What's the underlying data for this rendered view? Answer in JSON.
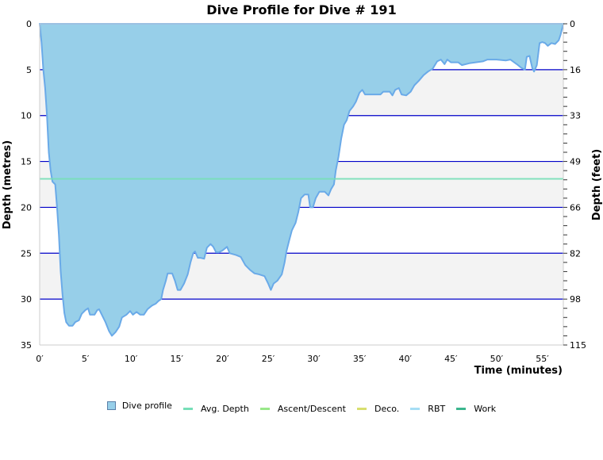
{
  "chart_data": {
    "type": "area",
    "title": "Dive Profile for Dive # 191",
    "xlabel": "Time (minutes)",
    "ylabel": "Depth (metres)",
    "y2label": "Depth (feet)",
    "xlim": [
      0,
      57.3
    ],
    "ylim": [
      0,
      35
    ],
    "y_inverted": true,
    "x_ticks": [
      "0′",
      "5′",
      "10′",
      "15′",
      "20′",
      "25′",
      "30′",
      "35′",
      "40′",
      "45′",
      "50′",
      "55′"
    ],
    "y_ticks": [
      0,
      5,
      10,
      15,
      20,
      25,
      30,
      35
    ],
    "y2_ticks": [
      0,
      16,
      33,
      49,
      66,
      82,
      98,
      115
    ],
    "grid": true,
    "bands": "alternating white/light-gray every 5 m",
    "avg_depth_m": 16.9,
    "series": [
      {
        "name": "Dive profile",
        "color": "#97cfe9",
        "stroke": "#6aaae8",
        "points": [
          [
            0,
            0
          ],
          [
            0.2,
            2
          ],
          [
            0.4,
            5
          ],
          [
            0.6,
            7
          ],
          [
            0.8,
            10
          ],
          [
            1.0,
            14
          ],
          [
            1.2,
            16
          ],
          [
            1.4,
            17.2
          ],
          [
            1.7,
            17.5
          ],
          [
            1.9,
            20
          ],
          [
            2.1,
            23
          ],
          [
            2.3,
            27
          ],
          [
            2.5,
            29.5
          ],
          [
            2.7,
            31.5
          ],
          [
            2.9,
            32.5
          ],
          [
            3.2,
            32.9
          ],
          [
            3.6,
            32.9
          ],
          [
            3.9,
            32.5
          ],
          [
            4.3,
            32.3
          ],
          [
            4.6,
            31.6
          ],
          [
            5.0,
            31.2
          ],
          [
            5.3,
            31.0
          ],
          [
            5.5,
            31.7
          ],
          [
            6.0,
            31.7
          ],
          [
            6.3,
            31.2
          ],
          [
            6.5,
            31.1
          ],
          [
            6.8,
            31.7
          ],
          [
            7.2,
            32.5
          ],
          [
            7.6,
            33.5
          ],
          [
            7.9,
            34.0
          ],
          [
            8.3,
            33.6
          ],
          [
            8.7,
            33.0
          ],
          [
            9.0,
            32.0
          ],
          [
            9.5,
            31.7
          ],
          [
            9.9,
            31.3
          ],
          [
            10.2,
            31.7
          ],
          [
            10.6,
            31.4
          ],
          [
            11.0,
            31.7
          ],
          [
            11.4,
            31.7
          ],
          [
            11.8,
            31.1
          ],
          [
            12.3,
            30.7
          ],
          [
            12.7,
            30.5
          ],
          [
            13.0,
            30.2
          ],
          [
            13.3,
            30.0
          ],
          [
            13.5,
            29.0
          ],
          [
            13.8,
            28.0
          ],
          [
            14.0,
            27.2
          ],
          [
            14.5,
            27.2
          ],
          [
            14.8,
            28.0
          ],
          [
            15.1,
            29.0
          ],
          [
            15.4,
            29.0
          ],
          [
            15.8,
            28.3
          ],
          [
            16.2,
            27.3
          ],
          [
            16.5,
            26.0
          ],
          [
            16.8,
            25.0
          ],
          [
            17.0,
            24.8
          ],
          [
            17.3,
            25.5
          ],
          [
            17.6,
            25.5
          ],
          [
            18.0,
            25.6
          ],
          [
            18.3,
            24.4
          ],
          [
            18.7,
            24.0
          ],
          [
            19.0,
            24.3
          ],
          [
            19.3,
            24.9
          ],
          [
            19.6,
            24.9
          ],
          [
            20.0,
            24.7
          ],
          [
            20.5,
            24.3
          ],
          [
            20.8,
            25.0
          ],
          [
            21.5,
            25.2
          ],
          [
            22.0,
            25.4
          ],
          [
            22.5,
            26.3
          ],
          [
            23.0,
            26.8
          ],
          [
            23.5,
            27.2
          ],
          [
            24.0,
            27.3
          ],
          [
            24.6,
            27.5
          ],
          [
            25.0,
            28.3
          ],
          [
            25.3,
            29.0
          ],
          [
            25.6,
            28.3
          ],
          [
            26.0,
            28.0
          ],
          [
            26.5,
            27.3
          ],
          [
            26.8,
            26.0
          ],
          [
            27.0,
            24.8
          ],
          [
            27.3,
            23.6
          ],
          [
            27.6,
            22.5
          ],
          [
            28.0,
            21.7
          ],
          [
            28.3,
            20.5
          ],
          [
            28.6,
            19.0
          ],
          [
            29.0,
            18.6
          ],
          [
            29.4,
            18.6
          ],
          [
            29.6,
            20.0
          ],
          [
            29.9,
            20.0
          ],
          [
            30.2,
            19.0
          ],
          [
            30.6,
            18.3
          ],
          [
            31.2,
            18.3
          ],
          [
            31.6,
            18.7
          ],
          [
            31.9,
            18.0
          ],
          [
            32.2,
            17.5
          ],
          [
            32.4,
            16.0
          ],
          [
            32.7,
            14.5
          ],
          [
            33.0,
            12.5
          ],
          [
            33.3,
            11.0
          ],
          [
            33.6,
            10.5
          ],
          [
            33.9,
            9.5
          ],
          [
            34.3,
            9.0
          ],
          [
            34.6,
            8.5
          ],
          [
            35.0,
            7.5
          ],
          [
            35.3,
            7.2
          ],
          [
            35.6,
            7.7
          ],
          [
            37.3,
            7.7
          ],
          [
            37.6,
            7.4
          ],
          [
            38.3,
            7.4
          ],
          [
            38.6,
            7.8
          ],
          [
            38.9,
            7.2
          ],
          [
            39.3,
            7.0
          ],
          [
            39.6,
            7.7
          ],
          [
            40.1,
            7.8
          ],
          [
            40.6,
            7.4
          ],
          [
            41.0,
            6.7
          ],
          [
            41.5,
            6.2
          ],
          [
            42.0,
            5.6
          ],
          [
            42.5,
            5.2
          ],
          [
            43.0,
            4.9
          ],
          [
            43.5,
            4.1
          ],
          [
            43.9,
            3.9
          ],
          [
            44.3,
            4.4
          ],
          [
            44.6,
            3.9
          ],
          [
            45.0,
            4.2
          ],
          [
            45.8,
            4.2
          ],
          [
            46.2,
            4.5
          ],
          [
            47.0,
            4.3
          ],
          [
            48.5,
            4.1
          ],
          [
            49.0,
            3.9
          ],
          [
            50.0,
            3.9
          ],
          [
            51.0,
            4.0
          ],
          [
            51.5,
            3.9
          ],
          [
            52.2,
            4.4
          ],
          [
            52.7,
            4.8
          ],
          [
            53.1,
            5.0
          ],
          [
            53.3,
            3.6
          ],
          [
            53.6,
            3.5
          ],
          [
            53.9,
            4.8
          ],
          [
            54.1,
            5.2
          ],
          [
            54.4,
            4.5
          ],
          [
            54.7,
            2.1
          ],
          [
            55.0,
            2.0
          ],
          [
            55.3,
            2.1
          ],
          [
            55.6,
            2.4
          ],
          [
            56.0,
            2.1
          ],
          [
            56.4,
            2.2
          ],
          [
            56.8,
            1.8
          ],
          [
            57.0,
            1.2
          ],
          [
            57.3,
            0
          ]
        ]
      },
      {
        "name": "Avg. Depth",
        "color": "#77dfb8",
        "type": "hline",
        "value": 16.9
      },
      {
        "name": "Ascent/Descent",
        "color": "#99e88a"
      },
      {
        "name": "Deco.",
        "color": "#d8df6e"
      },
      {
        "name": "RBT",
        "color": "#a6def5"
      },
      {
        "name": "Work",
        "color": "#3cb68e"
      }
    ]
  },
  "legend": {
    "items": [
      {
        "label": "Dive profile",
        "kind": "box",
        "color": "#97cfe9"
      },
      {
        "label": "Avg. Depth",
        "kind": "line",
        "color": "#77dfb8"
      },
      {
        "label": "Ascent/Descent",
        "kind": "line",
        "color": "#99e88a"
      },
      {
        "label": "Deco.",
        "kind": "line",
        "color": "#d8df6e"
      },
      {
        "label": "RBT",
        "kind": "line",
        "color": "#a6def5"
      },
      {
        "label": "Work",
        "kind": "line",
        "color": "#3cb68e"
      }
    ]
  }
}
